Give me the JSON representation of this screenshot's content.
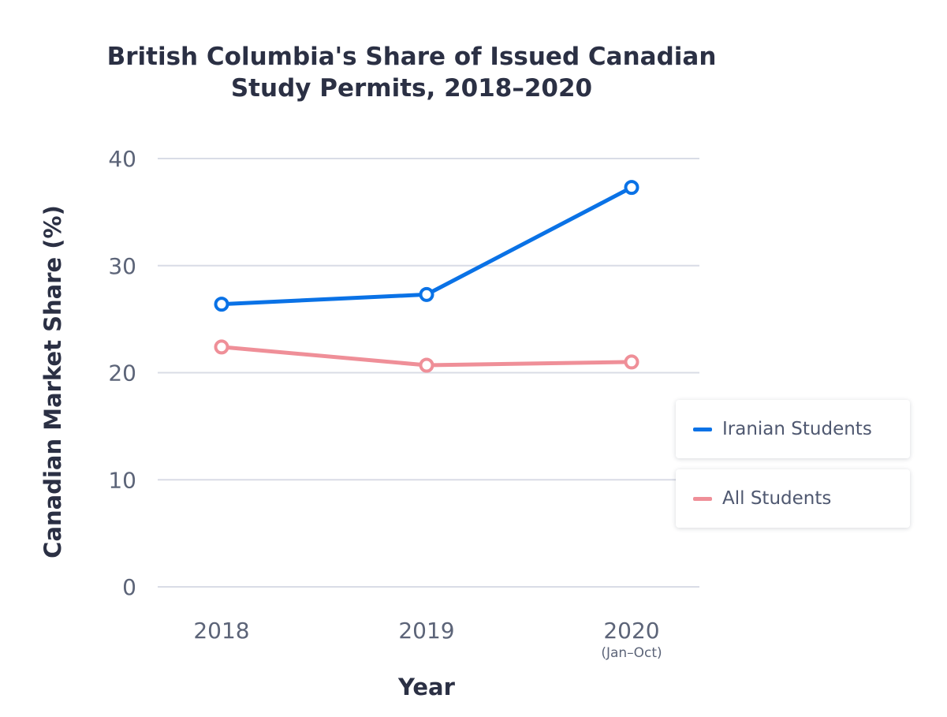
{
  "chart_data": {
    "type": "line",
    "title": "British Columbia's Share of Issued Canadian Study Permits, 2018–2020",
    "title_lines": [
      "British Columbia's Share of Issued Canadian",
      "Study Permits, 2018–2020"
    ],
    "xlabel": "Year",
    "ylabel": "Canadian Market Share (%)",
    "categories": [
      "2018",
      "2019",
      "2020"
    ],
    "category_notes": [
      "",
      "",
      "(Jan–Oct)"
    ],
    "ylim": [
      0,
      40
    ],
    "yticks": [
      0,
      10,
      20,
      30,
      40
    ],
    "grid": true,
    "legend_position": "right",
    "series": [
      {
        "name": "Iranian Students",
        "color": "#0a72e6",
        "values": [
          26.4,
          27.3,
          37.3
        ]
      },
      {
        "name": "All Students",
        "color": "#ef8f98",
        "values": [
          22.4,
          20.7,
          21.0
        ]
      }
    ]
  }
}
